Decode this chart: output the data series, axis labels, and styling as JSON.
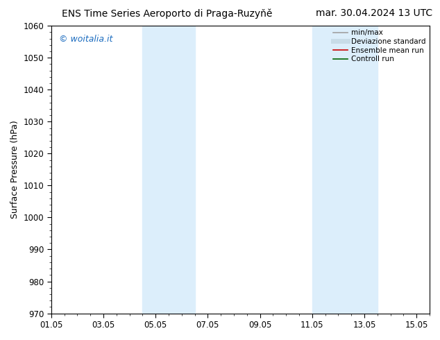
{
  "title_left": "ENS Time Series Aeroporto di Praga-Ruzyňě",
  "title_right": "mar. 30.04.2024 13 UTC",
  "ylabel": "Surface Pressure (hPa)",
  "ylim": [
    970,
    1060
  ],
  "yticks": [
    970,
    980,
    990,
    1000,
    1010,
    1020,
    1030,
    1040,
    1050,
    1060
  ],
  "xtick_labels": [
    "01.05",
    "03.05",
    "05.05",
    "07.05",
    "09.05",
    "11.05",
    "13.05",
    "15.05"
  ],
  "xtick_positions": [
    0,
    2,
    4,
    6,
    8,
    10,
    12,
    14
  ],
  "shaded_bands": [
    {
      "x_start": 3.5,
      "x_end": 5.5
    },
    {
      "x_start": 10.0,
      "x_end": 12.5
    }
  ],
  "shade_color": "#dceefb",
  "background_color": "#ffffff",
  "watermark_text": "© woitalia.it",
  "watermark_color": "#1a6bbf",
  "legend_items": [
    {
      "label": "min/max",
      "color": "#a0a0a0",
      "lw": 1.2
    },
    {
      "label": "Deviazione standard",
      "color": "#c8dce8",
      "lw": 5
    },
    {
      "label": "Ensemble mean run",
      "color": "#cc0000",
      "lw": 1.2
    },
    {
      "label": "Controll run",
      "color": "#006600",
      "lw": 1.2
    }
  ],
  "xmin": 0,
  "xmax": 14.5,
  "title_fontsize": 10,
  "label_fontsize": 9,
  "tick_fontsize": 8.5
}
